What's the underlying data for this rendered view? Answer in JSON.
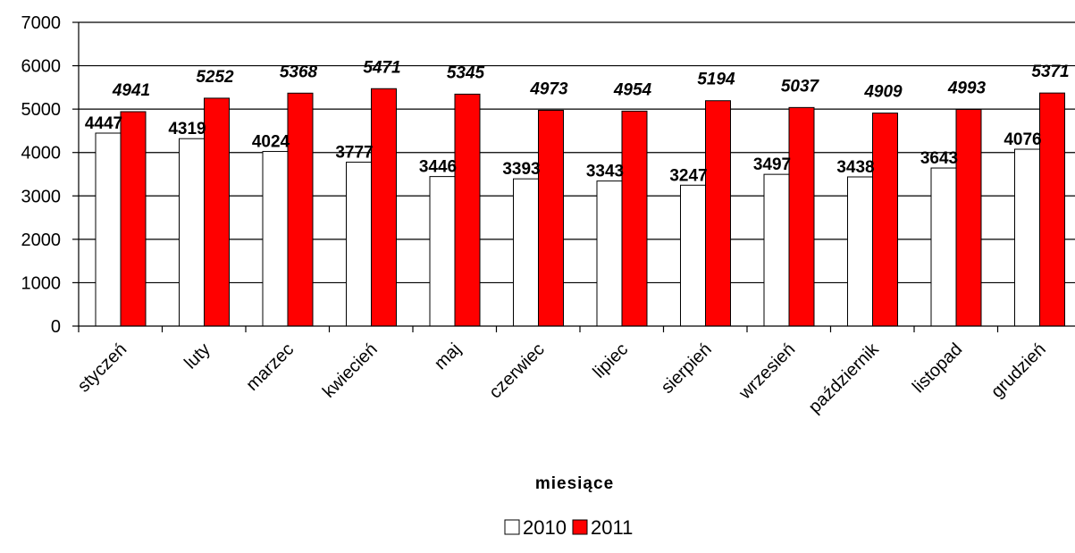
{
  "chart_data": {
    "type": "bar",
    "categories": [
      "styczeń",
      "luty",
      "marzec",
      "kwiecień",
      "maj",
      "czerwiec",
      "lipiec",
      "sierpień",
      "wrzesień",
      "październik",
      "listopad",
      "grudzień"
    ],
    "series": [
      {
        "name": "2010",
        "color": "#ffffff",
        "values": [
          4447,
          4319,
          4024,
          3777,
          3446,
          3393,
          3343,
          3247,
          3497,
          3438,
          3643,
          4076
        ]
      },
      {
        "name": "2011",
        "color": "#ff0000",
        "values": [
          4941,
          5252,
          5368,
          5471,
          5345,
          4973,
          4954,
          5194,
          5037,
          4909,
          4993,
          5371
        ]
      }
    ],
    "title": "",
    "xlabel": "miesiące",
    "ylabel": "",
    "ylim": [
      0,
      7000
    ],
    "yticks": [
      0,
      1000,
      2000,
      3000,
      4000,
      5000,
      6000,
      7000
    ],
    "grid": true,
    "legend": "bottom"
  }
}
